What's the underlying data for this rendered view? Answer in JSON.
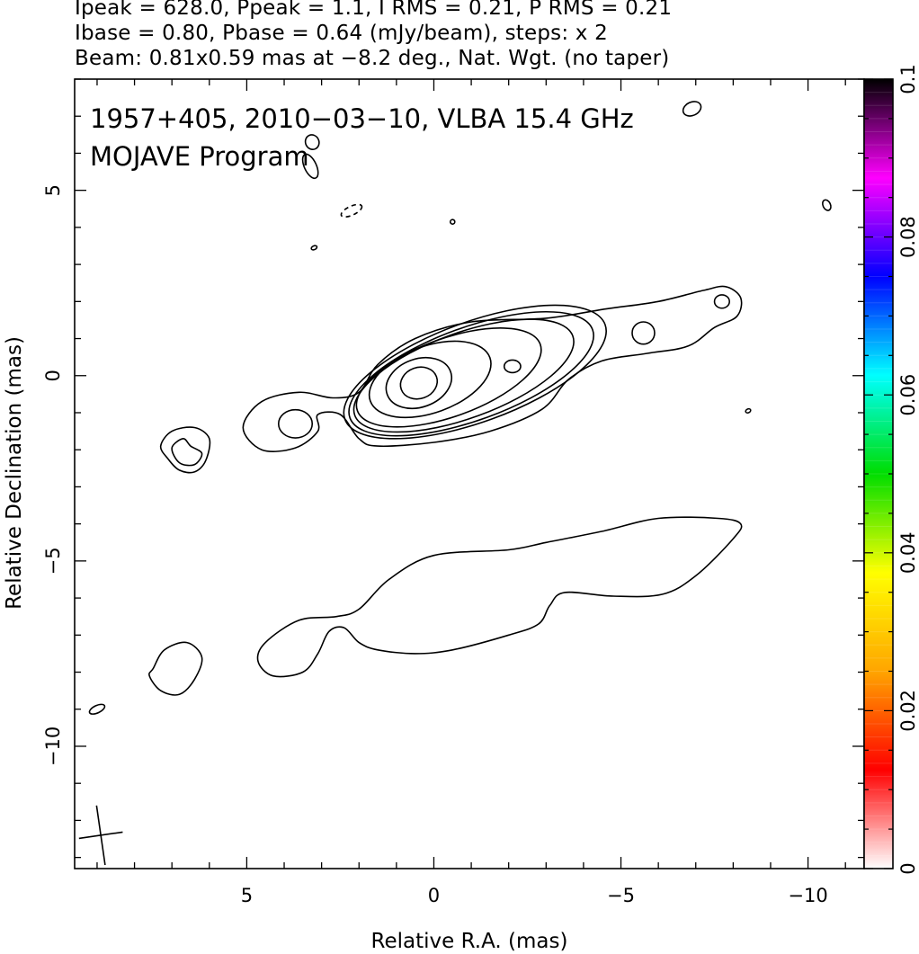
{
  "header": {
    "line1": "Ipeak = 628.0, Ppeak = 1.1, I RMS = 0.21, P RMS = 0.21",
    "line2": "Ibase = 0.80, Pbase = 0.64 (mJy/beam), steps: x 2",
    "line3": "Beam: 0.81x0.59 mas at −8.2 deg., Nat. Wgt. (no taper)"
  },
  "plot_labels": {
    "source": "1957+405, 2010−03−10, VLBA 15.4 GHz",
    "program": "MOJAVE Program"
  },
  "chart_data": {
    "type": "contour",
    "xlabel": "Relative R.A. (mas)",
    "ylabel": "Relative Declination (mas)",
    "xlim": [
      9.6,
      -11.5
    ],
    "ylim": [
      -13.3,
      8.0
    ],
    "x_ticks": [
      5,
      0,
      -5,
      -10
    ],
    "x_tick_labels": [
      "5",
      "0",
      "−5",
      "−10"
    ],
    "y_ticks": [
      5,
      0,
      -5,
      -10
    ],
    "y_tick_labels": [
      "5",
      "0",
      "−5",
      "−10"
    ],
    "colorbar": {
      "range": [
        0,
        0.1
      ],
      "ticks": [
        0,
        0.02,
        0.04,
        0.06,
        0.08,
        0.1
      ],
      "tick_labels": [
        "0",
        "0.02",
        "0.04",
        "0.06",
        "0.08",
        "0.1"
      ],
      "colors": [
        "#ffffff",
        "#ff0000",
        "#ffa500",
        "#ffff00",
        "#00dd00",
        "#00ffff",
        "#0000ff",
        "#ff00ff",
        "#000000"
      ]
    },
    "beam": {
      "major_mas": 0.81,
      "minor_mas": 0.59,
      "pa_deg": -8.2,
      "center": [
        8.9,
        -12.4
      ]
    },
    "contours": {
      "core_levels": [
        {
          "cx": 0.4,
          "cy": -0.2,
          "rx": 0.5,
          "ry": 0.42
        },
        {
          "cx": 0.4,
          "cy": -0.2,
          "rx": 0.9,
          "ry": 0.65
        },
        {
          "cx": 0.1,
          "cy": -0.1,
          "rx": 1.7,
          "ry": 0.9
        },
        {
          "cx": -0.4,
          "cy": -0.05,
          "rx": 2.6,
          "ry": 1.05
        },
        {
          "cx": -0.8,
          "cy": 0.0,
          "rx": 3.1,
          "ry": 1.15
        },
        {
          "cx": -1.0,
          "cy": 0.05,
          "rx": 3.45,
          "ry": 1.25
        },
        {
          "cx": -1.1,
          "cy": 0.1,
          "rx": 3.7,
          "ry": 1.35
        }
      ],
      "knots": [
        {
          "cx": -2.1,
          "cy": 0.25,
          "rx": 0.22,
          "ry": 0.17
        },
        {
          "cx": -5.6,
          "cy": 1.15,
          "rx": 0.3,
          "ry": 0.3
        },
        {
          "cx": 3.7,
          "cy": -1.3,
          "rx": 0.45,
          "ry": 0.38
        },
        {
          "cx": -7.7,
          "cy": 2.0,
          "rx": 0.2,
          "ry": 0.18
        }
      ],
      "outer_jet": [
        [
          5.1,
          -1.4
        ],
        [
          4.6,
          -0.7
        ],
        [
          3.6,
          -0.45
        ],
        [
          2.7,
          -0.6
        ],
        [
          2.0,
          -0.45
        ],
        [
          1.5,
          0.3
        ],
        [
          0.5,
          1.0
        ],
        [
          -1.0,
          1.45
        ],
        [
          -3.0,
          1.55
        ],
        [
          -4.6,
          1.8
        ],
        [
          -6.0,
          2.0
        ],
        [
          -7.2,
          2.3
        ],
        [
          -7.8,
          2.4
        ],
        [
          -8.2,
          2.1
        ],
        [
          -8.1,
          1.6
        ],
        [
          -7.5,
          1.3
        ],
        [
          -6.8,
          0.8
        ],
        [
          -5.7,
          0.6
        ],
        [
          -4.5,
          0.4
        ],
        [
          -3.6,
          -0.1
        ],
        [
          -2.9,
          -0.9
        ],
        [
          -1.5,
          -1.5
        ],
        [
          0.0,
          -1.8
        ],
        [
          1.5,
          -1.9
        ],
        [
          2.0,
          -1.7
        ],
        [
          2.5,
          -1.05
        ],
        [
          3.1,
          -1.05
        ],
        [
          3.1,
          -1.5
        ],
        [
          3.7,
          -1.95
        ],
        [
          4.6,
          -2.0
        ],
        [
          5.1,
          -1.4
        ]
      ],
      "blob_left": [
        [
          7.3,
          -1.9
        ],
        [
          7.0,
          -1.5
        ],
        [
          6.4,
          -1.4
        ],
        [
          6.0,
          -1.7
        ],
        [
          6.1,
          -2.3
        ],
        [
          6.4,
          -2.6
        ],
        [
          6.8,
          -2.55
        ],
        [
          7.1,
          -2.25
        ],
        [
          7.3,
          -1.9
        ]
      ],
      "blob_left_inner": [
        [
          7.0,
          -1.95
        ],
        [
          6.7,
          -1.7
        ],
        [
          6.5,
          -1.9
        ],
        [
          6.2,
          -2.1
        ],
        [
          6.4,
          -2.4
        ],
        [
          6.8,
          -2.35
        ],
        [
          7.0,
          -1.95
        ]
      ],
      "lower_jet": [
        [
          4.5,
          -7.2
        ],
        [
          3.6,
          -6.6
        ],
        [
          2.6,
          -6.5
        ],
        [
          2.0,
          -6.3
        ],
        [
          1.2,
          -5.5
        ],
        [
          0.0,
          -4.85
        ],
        [
          -2.0,
          -4.7
        ],
        [
          -3.0,
          -4.5
        ],
        [
          -4.5,
          -4.2
        ],
        [
          -6.0,
          -3.85
        ],
        [
          -7.6,
          -3.85
        ],
        [
          -8.2,
          -4.0
        ],
        [
          -8.0,
          -4.4
        ],
        [
          -7.0,
          -5.4
        ],
        [
          -6.1,
          -5.9
        ],
        [
          -4.8,
          -5.95
        ],
        [
          -3.5,
          -5.85
        ],
        [
          -3.1,
          -6.2
        ],
        [
          -2.8,
          -6.7
        ],
        [
          -2.0,
          -7.0
        ],
        [
          -0.5,
          -7.4
        ],
        [
          0.5,
          -7.5
        ],
        [
          1.5,
          -7.4
        ],
        [
          2.0,
          -7.2
        ],
        [
          2.4,
          -6.8
        ],
        [
          2.8,
          -6.9
        ],
        [
          3.1,
          -7.5
        ],
        [
          3.5,
          -8.0
        ],
        [
          4.3,
          -8.1
        ],
        [
          4.7,
          -7.7
        ],
        [
          4.5,
          -7.2
        ]
      ],
      "blob_lower_left": [
        [
          7.5,
          -7.9
        ],
        [
          7.2,
          -7.4
        ],
        [
          6.6,
          -7.2
        ],
        [
          6.2,
          -7.6
        ],
        [
          6.4,
          -8.2
        ],
        [
          6.8,
          -8.6
        ],
        [
          7.3,
          -8.5
        ],
        [
          7.6,
          -8.1
        ],
        [
          7.5,
          -7.9
        ]
      ],
      "small_blobs": [
        {
          "cx": 9.0,
          "cy": -9.0,
          "rx": 0.22,
          "ry": 0.1,
          "dashed": false
        },
        {
          "cx": 2.2,
          "cy": 4.45,
          "rx": 0.3,
          "ry": 0.12,
          "dashed": true
        },
        {
          "cx": -10.5,
          "cy": 4.6,
          "rx": 0.1,
          "ry": 0.15,
          "dashed": false
        },
        {
          "cx": -8.4,
          "cy": -0.95,
          "rx": 0.07,
          "ry": 0.05,
          "dashed": false
        },
        {
          "cx": -0.5,
          "cy": 4.15,
          "rx": 0.06,
          "ry": 0.06,
          "dashed": false
        },
        {
          "cx": -6.9,
          "cy": 7.2,
          "rx": 0.25,
          "ry": 0.18,
          "dashed": false
        },
        {
          "cx": 3.25,
          "cy": 6.3,
          "rx": 0.18,
          "ry": 0.2,
          "dashed": false
        },
        {
          "cx": 3.3,
          "cy": 5.65,
          "rx": 0.16,
          "ry": 0.35,
          "dashed": false
        },
        {
          "cx": 3.2,
          "cy": 3.45,
          "rx": 0.08,
          "ry": 0.05,
          "dashed": false
        }
      ]
    }
  }
}
